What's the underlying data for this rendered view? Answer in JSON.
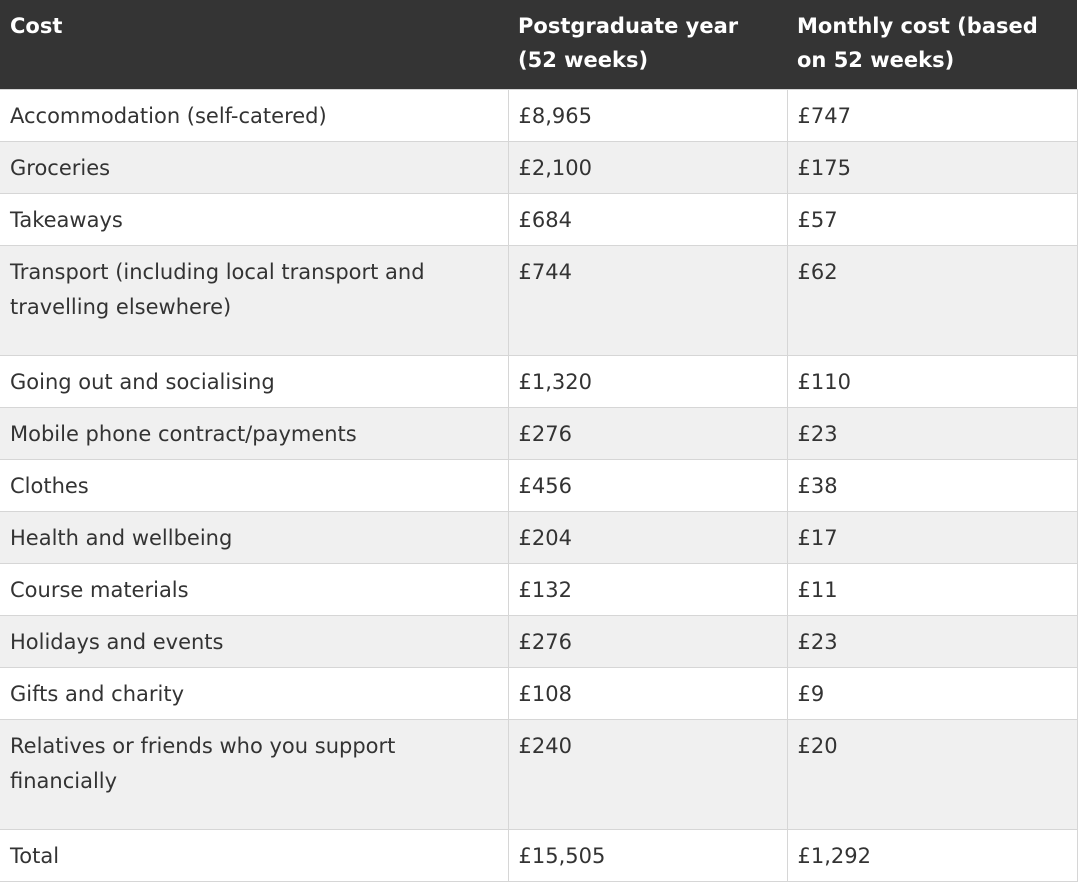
{
  "table": {
    "headers": [
      "Cost",
      "Postgraduate year (52 weeks)",
      "Monthly cost (based on 52 weeks)"
    ],
    "rows": [
      {
        "cost": "Accommodation (self-catered)",
        "year": "£8,965",
        "monthly": "£747"
      },
      {
        "cost": "Groceries",
        "year": "£2,100",
        "monthly": "£175"
      },
      {
        "cost": "Takeaways",
        "year": "£684",
        "monthly": "£57"
      },
      {
        "cost": "Transport (including local transport and travelling elsewhere)",
        "year": "£744",
        "monthly": "£62"
      },
      {
        "cost": "Going out and socialising",
        "year": "£1,320",
        "monthly": "£110"
      },
      {
        "cost": "Mobile phone contract/payments",
        "year": "£276",
        "monthly": "£23"
      },
      {
        "cost": "Clothes",
        "year": "£456",
        "monthly": "£38"
      },
      {
        "cost": "Health and wellbeing",
        "year": "£204",
        "monthly": "£17"
      },
      {
        "cost": "Course materials",
        "year": "£132",
        "monthly": "£11"
      },
      {
        "cost": "Holidays and events",
        "year": "£276",
        "monthly": "£23"
      },
      {
        "cost": "Gifts and charity",
        "year": "£108",
        "monthly": "£9"
      },
      {
        "cost": "Relatives or friends who you support financially",
        "year": "£240",
        "monthly": "£20"
      },
      {
        "cost": "Total",
        "year": "£15,505",
        "monthly": "£1,292"
      }
    ]
  }
}
